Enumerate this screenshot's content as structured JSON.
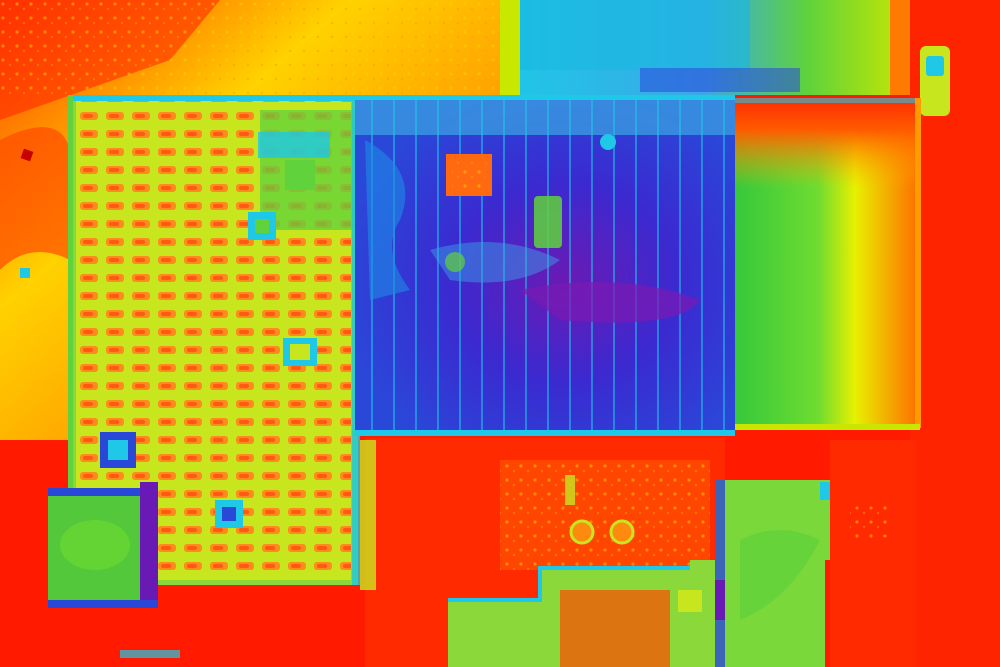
{
  "image": {
    "kind": "thermal aerial view of building rooftops (false-color heat map)",
    "palette": {
      "hot": "#ff1a00",
      "warm_orange": "#ff7a00",
      "warm_yellow": "#f5f000",
      "mid_green": "#5fd23c",
      "cool_cyan": "#1ec8e6",
      "cold_blue": "#2a2ec8",
      "coldest_violet": "#6a1ab4"
    }
  }
}
